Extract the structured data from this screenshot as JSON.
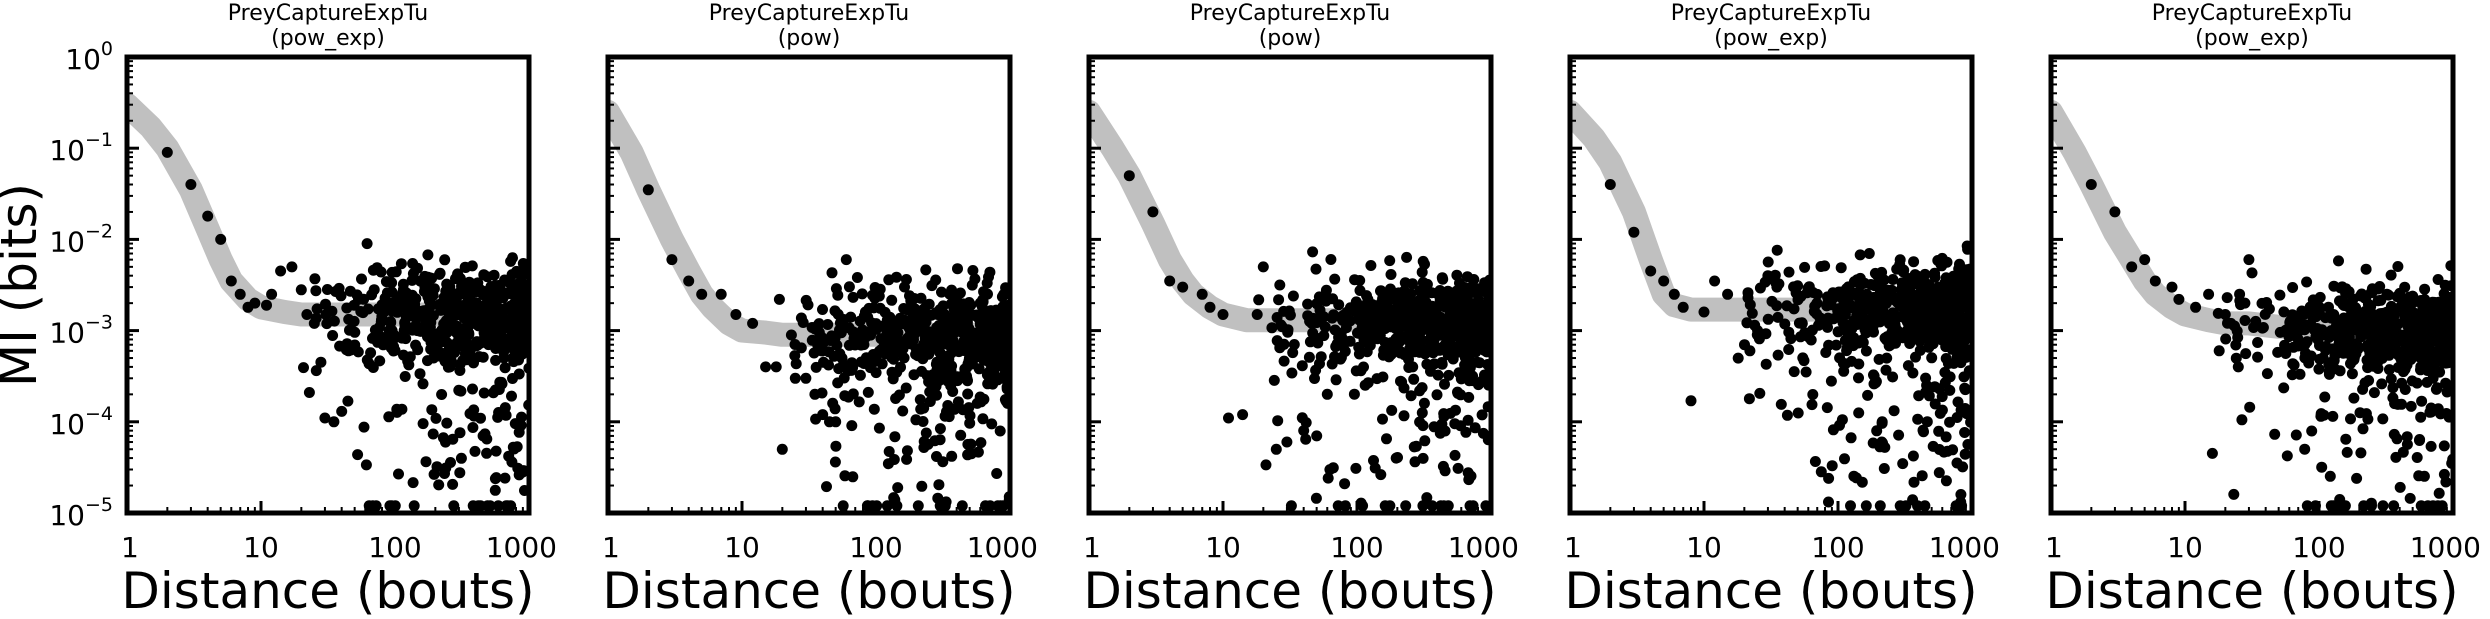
{
  "chart_data": [
    {
      "type": "scatter",
      "title_line1": "PreyCaptureExpTu",
      "title_line2": "(pow_exp)",
      "xlabel": "Distance (bouts)",
      "ylabel": "MI (bits)",
      "xscale": "log",
      "yscale": "log",
      "xlim": [
        1,
        1000
      ],
      "ylim": [
        1e-05,
        1
      ],
      "fit_curve": {
        "x": [
          1,
          1.5,
          2,
          3,
          4,
          5,
          6,
          8,
          10,
          15,
          20,
          30,
          50,
          100,
          200,
          500,
          1000
        ],
        "y": [
          0.3,
          0.17,
          0.1,
          0.035,
          0.013,
          0.006,
          0.0035,
          0.0022,
          0.0018,
          0.0016,
          0.0015,
          0.0015,
          0.0015,
          0.0015,
          0.0015,
          0.0015,
          0.0015
        ]
      },
      "seed": 11,
      "series": [
        {
          "points": [
            [
              2,
              0.09
            ],
            [
              3,
              0.04
            ],
            [
              4,
              0.018
            ],
            [
              5,
              0.01
            ],
            [
              6,
              0.0035
            ],
            [
              7,
              0.0025
            ],
            [
              8,
              0.0018
            ],
            [
              9,
              0.002
            ],
            [
              11,
              0.0019
            ],
            [
              12,
              0.0025
            ],
            [
              14,
              0.0045
            ],
            [
              17,
              0.005
            ],
            [
              20,
              0.0028
            ],
            [
              25,
              0.0012
            ],
            [
              30,
              0.00011
            ],
            [
              35,
              0.0001
            ],
            [
              40,
              0.00013
            ],
            [
              22,
              0.0015
            ],
            [
              28,
              0.00045
            ],
            [
              45,
              0.0006
            ]
          ]
        }
      ]
    },
    {
      "type": "scatter",
      "title_line1": "PreyCaptureExpTu",
      "title_line2": "(pow)",
      "xscale": "log",
      "yscale": "log",
      "xlim": [
        1,
        1000
      ],
      "ylim": [
        1e-05,
        1
      ],
      "fit_curve": {
        "x": [
          1,
          1.5,
          2,
          3,
          4,
          5,
          6,
          8,
          10,
          15,
          20,
          30,
          50,
          100,
          200,
          500,
          1000
        ],
        "y": [
          0.25,
          0.09,
          0.035,
          0.01,
          0.0045,
          0.0025,
          0.0018,
          0.0012,
          0.001,
          0.00095,
          0.0009,
          0.0009,
          0.0009,
          0.0009,
          0.0009,
          0.0009,
          0.0009
        ]
      },
      "seed": 23,
      "series": [
        {
          "points": [
            [
              2,
              0.035
            ],
            [
              3,
              0.006
            ],
            [
              4,
              0.0035
            ],
            [
              5,
              0.0025
            ],
            [
              7,
              0.0025
            ],
            [
              9,
              0.0015
            ],
            [
              12,
              0.0012
            ],
            [
              15,
              0.0004
            ],
            [
              18,
              0.0004
            ],
            [
              20,
              5e-05
            ],
            [
              25,
              0.0003
            ],
            [
              30,
              0.0003
            ],
            [
              35,
              0.0002
            ],
            [
              40,
              0.00012
            ],
            [
              45,
              0.0001
            ],
            [
              50,
              0.0001
            ],
            [
              60,
              0.006
            ]
          ]
        }
      ]
    },
    {
      "type": "scatter",
      "title_line1": "PreyCaptureExpTu",
      "title_line2": "(pow)",
      "xscale": "log",
      "yscale": "log",
      "xlim": [
        1,
        1000
      ],
      "ylim": [
        1e-05,
        1
      ],
      "fit_curve": {
        "x": [
          1,
          1.5,
          2,
          3,
          4,
          5,
          6,
          8,
          10,
          15,
          20,
          30,
          50,
          100,
          200,
          500,
          1000
        ],
        "y": [
          0.25,
          0.1,
          0.05,
          0.015,
          0.006,
          0.0035,
          0.0025,
          0.0018,
          0.0015,
          0.0013,
          0.0013,
          0.0013,
          0.0013,
          0.0013,
          0.0013,
          0.0013,
          0.0013
        ]
      },
      "seed": 37,
      "series": [
        {
          "points": [
            [
              2,
              0.05
            ],
            [
              3,
              0.02
            ],
            [
              4,
              0.0035
            ],
            [
              5,
              0.003
            ],
            [
              7,
              0.0025
            ],
            [
              8,
              0.0018
            ],
            [
              10,
              0.0015
            ],
            [
              11,
              0.00011
            ],
            [
              14,
              0.00012
            ],
            [
              18,
              0.0015
            ],
            [
              20,
              0.005
            ],
            [
              25,
              5e-05
            ],
            [
              30,
              6e-05
            ],
            [
              40,
              8e-05
            ],
            [
              50,
              7e-05
            ],
            [
              60,
              0.0002
            ]
          ]
        }
      ]
    },
    {
      "type": "scatter",
      "title_line1": "PreyCaptureExpTu",
      "title_line2": "(pow_exp)",
      "xscale": "log",
      "yscale": "log",
      "xlim": [
        1,
        1000
      ],
      "ylim": [
        1e-05,
        1
      ],
      "fit_curve": {
        "x": [
          1,
          1.5,
          2,
          3,
          4,
          5,
          6,
          8,
          10,
          15,
          20,
          30,
          50,
          100,
          200,
          500,
          1000
        ],
        "y": [
          0.25,
          0.13,
          0.07,
          0.02,
          0.006,
          0.0025,
          0.0019,
          0.0017,
          0.0017,
          0.0017,
          0.0017,
          0.0017,
          0.0017,
          0.0017,
          0.0017,
          0.0017,
          0.0017
        ]
      },
      "seed": 53,
      "series": [
        {
          "points": [
            [
              2,
              0.04
            ],
            [
              3,
              0.012
            ],
            [
              4,
              0.0045
            ],
            [
              5,
              0.0035
            ],
            [
              6,
              0.0025
            ],
            [
              7,
              0.0018
            ],
            [
              8,
              0.00017
            ],
            [
              10,
              0.0016
            ],
            [
              12,
              0.0035
            ],
            [
              15,
              0.0025
            ],
            [
              18,
              0.0005
            ],
            [
              22,
              0.0006
            ],
            [
              25,
              0.0009
            ],
            [
              30,
              0.004
            ],
            [
              35,
              0.003
            ]
          ]
        }
      ]
    },
    {
      "type": "scatter",
      "title_line1": "PreyCaptureExpTu",
      "title_line2": "(pow_exp)",
      "xscale": "log",
      "yscale": "log",
      "xlim": [
        1,
        1000
      ],
      "ylim": [
        1e-05,
        1
      ],
      "fit_curve": {
        "x": [
          1,
          1.5,
          2,
          3,
          4,
          5,
          6,
          8,
          10,
          15,
          20,
          30,
          50,
          100,
          200,
          500,
          1000
        ],
        "y": [
          0.25,
          0.09,
          0.04,
          0.012,
          0.006,
          0.0035,
          0.0025,
          0.0018,
          0.0015,
          0.0013,
          0.0012,
          0.0012,
          0.0011,
          0.0011,
          0.0011,
          0.0011,
          0.0011
        ]
      },
      "seed": 71,
      "series": [
        {
          "points": [
            [
              2,
              0.04
            ],
            [
              3,
              0.02
            ],
            [
              4,
              0.005
            ],
            [
              5,
              0.006
            ],
            [
              6,
              0.0035
            ],
            [
              8,
              0.003
            ],
            [
              9,
              0.0022
            ],
            [
              12,
              0.0018
            ],
            [
              15,
              0.0025
            ],
            [
              18,
              0.0006
            ],
            [
              20,
              0.0015
            ],
            [
              22,
              0.0012
            ],
            [
              25,
              0.0004
            ],
            [
              28,
              0.002
            ],
            [
              30,
              0.006
            ]
          ]
        }
      ]
    }
  ],
  "axes": {
    "y_tick_values": [
      1,
      0.1,
      0.01,
      0.001,
      0.0001,
      1e-05
    ],
    "y_tick_bases": [
      "10",
      "10",
      "10",
      "10",
      "10",
      "10"
    ],
    "y_tick_exponents": [
      "0",
      "−1",
      "−2",
      "−3",
      "−4",
      "−5"
    ],
    "x_tick_values": [
      1,
      10,
      100,
      1000
    ],
    "x_tick_labels": [
      "1",
      "10",
      "100",
      "1000"
    ]
  },
  "colors": {
    "points": "#000000",
    "fit": "#c0c0c0",
    "frame": "#000000"
  }
}
